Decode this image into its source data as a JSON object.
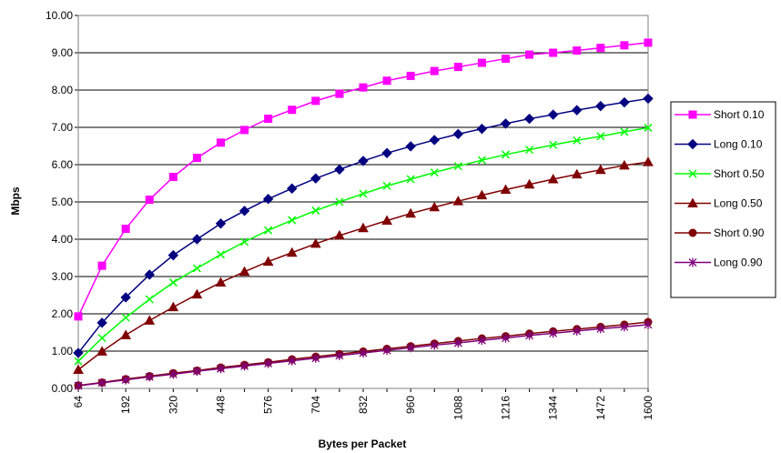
{
  "chart_data": {
    "type": "line",
    "xlabel": "Bytes per Packet",
    "ylabel": "Mbps",
    "ylim": [
      0,
      10
    ],
    "yticks": [
      "0.00",
      "1.00",
      "2.00",
      "3.00",
      "4.00",
      "5.00",
      "6.00",
      "7.00",
      "8.00",
      "9.00",
      "10.00"
    ],
    "xticks": [
      "64",
      "192",
      "320",
      "448",
      "576",
      "704",
      "832",
      "960",
      "1088",
      "1216",
      "1344",
      "1472",
      "1600"
    ],
    "x": [
      64,
      128,
      192,
      256,
      320,
      384,
      448,
      512,
      576,
      640,
      704,
      768,
      832,
      896,
      960,
      1024,
      1088,
      1152,
      1216,
      1280,
      1344,
      1408,
      1472,
      1536,
      1600
    ],
    "grid": "horizontal",
    "legend_position": "right",
    "series": [
      {
        "name": "Short 0.10",
        "color": "#ff00ff",
        "marker": "square",
        "values": [
          1.93,
          3.29,
          4.28,
          5.06,
          5.67,
          6.18,
          6.59,
          6.93,
          7.23,
          7.47,
          7.71,
          7.9,
          8.07,
          8.25,
          8.38,
          8.51,
          8.62,
          8.73,
          8.84,
          8.95,
          9.0,
          9.06,
          9.13,
          9.2,
          9.27
        ]
      },
      {
        "name": "Long 0.10",
        "color": "#000080",
        "marker": "diamond",
        "values": [
          0.95,
          1.76,
          2.44,
          3.05,
          3.57,
          4.0,
          4.42,
          4.76,
          5.08,
          5.36,
          5.63,
          5.87,
          6.1,
          6.31,
          6.49,
          6.66,
          6.82,
          6.96,
          7.1,
          7.23,
          7.34,
          7.46,
          7.57,
          7.67,
          7.77
        ]
      },
      {
        "name": "Short 0.50",
        "color": "#00ff00",
        "marker": "x",
        "values": [
          0.73,
          1.35,
          1.9,
          2.39,
          2.84,
          3.22,
          3.59,
          3.93,
          4.24,
          4.51,
          4.77,
          5.0,
          5.22,
          5.43,
          5.61,
          5.79,
          5.96,
          6.12,
          6.27,
          6.4,
          6.53,
          6.65,
          6.76,
          6.88,
          6.99
        ]
      },
      {
        "name": "Long 0.50",
        "color": "#800000",
        "marker": "triangle",
        "values": [
          0.5,
          0.99,
          1.43,
          1.82,
          2.18,
          2.52,
          2.84,
          3.13,
          3.4,
          3.64,
          3.88,
          4.1,
          4.3,
          4.5,
          4.69,
          4.86,
          5.02,
          5.18,
          5.33,
          5.47,
          5.61,
          5.74,
          5.86,
          5.98,
          6.07
        ]
      },
      {
        "name": "Short 0.90",
        "color": "#800000",
        "marker": "circle",
        "values": [
          0.08,
          0.16,
          0.25,
          0.33,
          0.41,
          0.48,
          0.56,
          0.63,
          0.7,
          0.78,
          0.85,
          0.92,
          0.99,
          1.06,
          1.13,
          1.2,
          1.27,
          1.34,
          1.4,
          1.47,
          1.53,
          1.59,
          1.65,
          1.71,
          1.78
        ]
      },
      {
        "name": "Long 0.90",
        "color": "#800080",
        "marker": "star",
        "values": [
          0.07,
          0.15,
          0.23,
          0.31,
          0.38,
          0.46,
          0.53,
          0.6,
          0.67,
          0.74,
          0.81,
          0.88,
          0.95,
          1.02,
          1.09,
          1.16,
          1.22,
          1.29,
          1.35,
          1.42,
          1.48,
          1.54,
          1.6,
          1.65,
          1.71
        ]
      }
    ]
  }
}
